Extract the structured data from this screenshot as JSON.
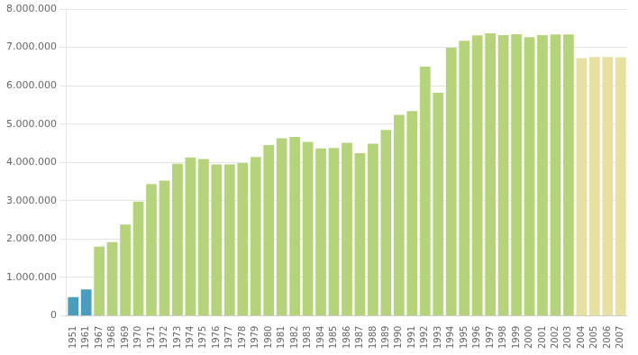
{
  "chart_data": {
    "type": "bar",
    "categories": [
      "1951",
      "1961",
      "1967",
      "1968",
      "1969",
      "1970",
      "1971",
      "1972",
      "1973",
      "1974",
      "1975",
      "1976",
      "1977",
      "1978",
      "1979",
      "1980",
      "1981",
      "1982",
      "1983",
      "1984",
      "1985",
      "1986",
      "1987",
      "1988",
      "1989",
      "1990",
      "1991",
      "1992",
      "1993",
      "1994",
      "1995",
      "1996",
      "1997",
      "1998",
      "1999",
      "2000",
      "2001",
      "2002",
      "2003",
      "2004",
      "2005",
      "2006",
      "2007"
    ],
    "values": [
      487000,
      686000,
      1806000,
      1924000,
      2381000,
      2977000,
      3439000,
      3527000,
      3966000,
      4127000,
      4090000,
      3948000,
      3948000,
      3981000,
      4143000,
      4453000,
      4630000,
      4667000,
      4535000,
      4364000,
      4379000,
      4513000,
      4241000,
      4489000,
      4846000,
      5242000,
      5340000,
      6496000,
      5814000,
      6991000,
      7174000,
      7314000,
      7366000,
      7320000,
      7344000,
      7267000,
      7319000,
      7336000,
      7335000,
      6717000,
      6748000,
      6751000,
      6745000
    ],
    "colors": [
      "#4a9dbf",
      "#4a9dbf",
      "#b5d47a",
      "#b5d47a",
      "#b5d47a",
      "#b5d47a",
      "#b5d47a",
      "#b5d47a",
      "#b5d47a",
      "#b5d47a",
      "#b5d47a",
      "#b5d47a",
      "#b5d47a",
      "#b5d47a",
      "#b5d47a",
      "#b5d47a",
      "#b5d47a",
      "#b5d47a",
      "#b5d47a",
      "#b5d47a",
      "#b5d47a",
      "#b5d47a",
      "#b5d47a",
      "#b5d47a",
      "#b5d47a",
      "#b5d47a",
      "#b5d47a",
      "#b5d47a",
      "#b5d47a",
      "#b5d47a",
      "#b5d47a",
      "#b5d47a",
      "#b5d47a",
      "#b5d47a",
      "#b5d47a",
      "#b5d47a",
      "#b5d47a",
      "#b5d47a",
      "#b5d47a",
      "#e8e0a0",
      "#e8e0a0",
      "#e8e0a0",
      "#e8e0a0"
    ],
    "ylim": [
      0,
      8000000
    ],
    "yticks": [
      0,
      {
        "value": 1000000,
        "label": "1.000.000"
      },
      {
        "value": 2000000,
        "label": "2.000.000"
      },
      {
        "value": 3000000,
        "label": "3.000.000"
      },
      {
        "value": 4000000,
        "label": "4.000.000"
      },
      {
        "value": 5000000,
        "label": "5.000.000"
      },
      {
        "value": 6000000,
        "label": "6.000.000"
      },
      {
        "value": 7000000,
        "label": "7.000.000"
      },
      {
        "value": 8000000,
        "label": "8.000.000"
      }
    ],
    "grid": true
  }
}
